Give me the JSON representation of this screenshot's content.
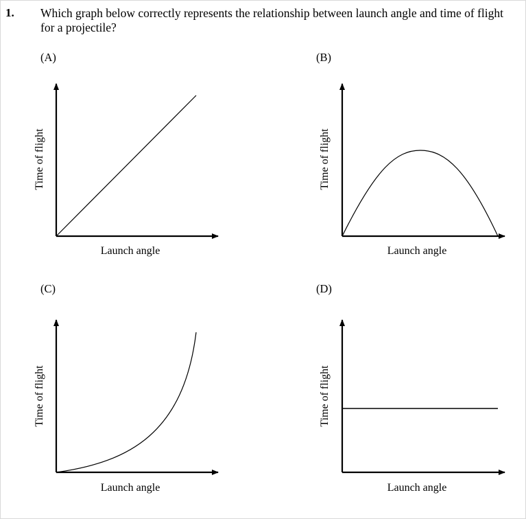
{
  "question": {
    "number": "1.",
    "text": "Which graph below correctly represents the relationship between launch angle and time of flight for a projectile?"
  },
  "options": [
    {
      "id": "A",
      "label": "(A)",
      "xlabel": "Launch angle",
      "ylabel": "Time of flight",
      "curve": "linear-increasing"
    },
    {
      "id": "B",
      "label": "(B)",
      "xlabel": "Launch angle",
      "ylabel": "Time of flight",
      "curve": "arch"
    },
    {
      "id": "C",
      "label": "(C)",
      "xlabel": "Launch angle",
      "ylabel": "Time of flight",
      "curve": "exponential-increasing"
    },
    {
      "id": "D",
      "label": "(D)",
      "xlabel": "Launch angle",
      "ylabel": "Time of flight",
      "curve": "constant"
    }
  ],
  "colors": {
    "ink": "#000000",
    "frame": "#d9d9d9"
  }
}
